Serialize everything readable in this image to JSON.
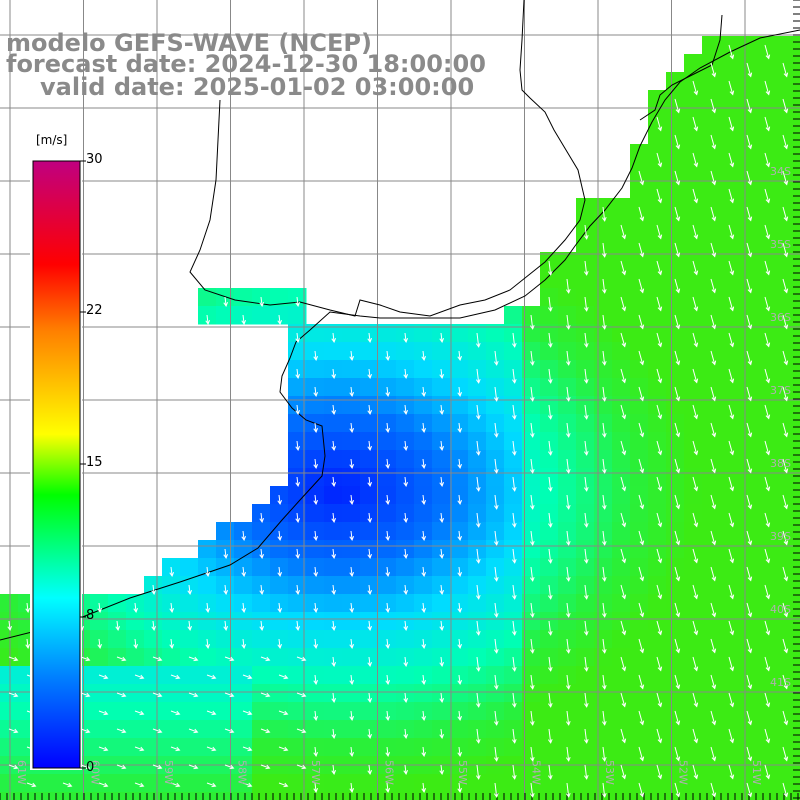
{
  "title": {
    "line1": "modelo GEFS-WAVE (NCEP)",
    "line2": "forecast date: 2024-12-30 18:00:00",
    "line3": "valid date: 2025-01-02 03:00:00"
  },
  "colorbar": {
    "unit": "[m/s]",
    "ticks": [
      "30",
      "22",
      "15",
      "8",
      "0"
    ],
    "min": 0,
    "max": 30,
    "colors": [
      "#0000ff",
      "#0080ff",
      "#00ffff",
      "#00ff00",
      "#ffff00",
      "#ff8000",
      "#ff0000",
      "#c00080"
    ]
  },
  "map": {
    "land_color": "#ffffff",
    "grid_color": "#888888",
    "coast_color": "#000000",
    "arrow_color": "#ffffff",
    "lon_labels": [
      "61W",
      "60W",
      "59W",
      "58W",
      "57W",
      "56W",
      "55W",
      "54W",
      "53W",
      "52W",
      "51W"
    ],
    "lat_labels": [
      "34S",
      "35S",
      "36S",
      "37S",
      "38S",
      "39S",
      "40S",
      "41S"
    ]
  }
}
